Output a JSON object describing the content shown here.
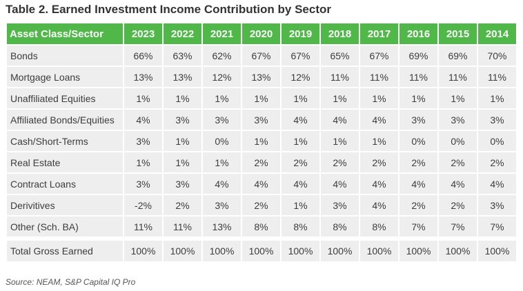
{
  "title": "Table 2. Earned Investment Income Contribution by Sector",
  "header": {
    "sector_label": "Asset Class/Sector",
    "years": [
      "2023",
      "2022",
      "2021",
      "2020",
      "2019",
      "2018",
      "2017",
      "2016",
      "2015",
      "2014"
    ]
  },
  "rows": [
    {
      "label": "Bonds",
      "values": [
        "66%",
        "63%",
        "62%",
        "67%",
        "67%",
        "65%",
        "67%",
        "69%",
        "69%",
        "70%"
      ]
    },
    {
      "label": "Mortgage Loans",
      "values": [
        "13%",
        "13%",
        "12%",
        "13%",
        "12%",
        "11%",
        "11%",
        "11%",
        "11%",
        "11%"
      ]
    },
    {
      "label": "Unaffiliated Equities",
      "values": [
        "1%",
        "1%",
        "1%",
        "1%",
        "1%",
        "1%",
        "1%",
        "1%",
        "1%",
        "1%"
      ]
    },
    {
      "label": "Affiliated Bonds/Equities",
      "values": [
        "4%",
        "3%",
        "3%",
        "3%",
        "4%",
        "4%",
        "4%",
        "3%",
        "3%",
        "3%"
      ]
    },
    {
      "label": "Cash/Short-Terms",
      "values": [
        "3%",
        "1%",
        "0%",
        "1%",
        "1%",
        "1%",
        "1%",
        "0%",
        "0%",
        "0%"
      ]
    },
    {
      "label": "Real Estate",
      "values": [
        "1%",
        "1%",
        "1%",
        "2%",
        "2%",
        "2%",
        "2%",
        "2%",
        "2%",
        "2%"
      ]
    },
    {
      "label": "Contract Loans",
      "values": [
        "3%",
        "3%",
        "4%",
        "4%",
        "4%",
        "4%",
        "4%",
        "4%",
        "4%",
        "4%"
      ]
    },
    {
      "label": "Derivitives",
      "values": [
        "-2%",
        "2%",
        "3%",
        "2%",
        "1%",
        "3%",
        "4%",
        "2%",
        "2%",
        "3%"
      ]
    },
    {
      "label": "Other (Sch. BA)",
      "values": [
        "11%",
        "11%",
        "13%",
        "8%",
        "8%",
        "8%",
        "8%",
        "7%",
        "7%",
        "7%"
      ]
    }
  ],
  "total": {
    "label": "Total Gross Earned",
    "values": [
      "100%",
      "100%",
      "100%",
      "100%",
      "100%",
      "100%",
      "100%",
      "100%",
      "100%",
      "100%"
    ]
  },
  "source": "Source: NEAM, S&P Capital IQ Pro",
  "colors": {
    "header_bg": "#4fb848",
    "cell_bg": "#eeeeee"
  }
}
